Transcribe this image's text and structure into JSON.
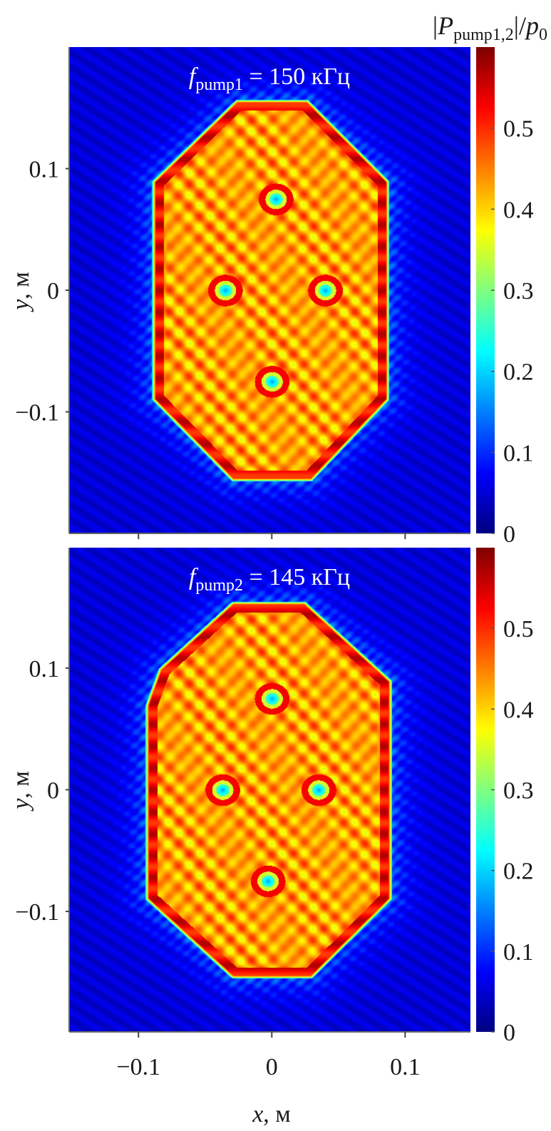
{
  "chart_data": [
    {
      "type": "heatmap",
      "title": {
        "var": "f",
        "sub": "pump1",
        "rest": " = 150 кГц"
      },
      "xlabel": {
        "var": "x",
        "rest": ", м"
      },
      "ylabel": {
        "var": "y",
        "rest": ", м"
      },
      "xlim": [
        -0.152,
        0.149
      ],
      "ylim": [
        -0.2,
        0.2
      ],
      "xticks": [
        -0.1,
        0,
        0.1
      ],
      "yticks": [
        0.1,
        0,
        -0.1
      ],
      "ytick_labels": [
        "0.1",
        "0",
        "−0.1"
      ],
      "show_xtick_labels": false,
      "colorbar": {
        "range": [
          0,
          0.6
        ],
        "ticks": [
          0,
          0.1,
          0.2,
          0.3,
          0.4,
          0.5
        ],
        "tick_labels": [
          "0",
          "0.1",
          "0.2",
          "0.3",
          "0.4",
          "0.5"
        ],
        "colormap": "jet"
      },
      "field": {
        "outside_level": 0.05,
        "inside_level": 0.43,
        "boundary_level": 0.53,
        "boundary_vertices": [
          [
            -0.09,
            0.09
          ],
          [
            -0.027,
            0.157
          ],
          [
            0.027,
            0.157
          ],
          [
            0.088,
            0.09
          ],
          [
            0.088,
            -0.09
          ],
          [
            0.03,
            -0.157
          ],
          [
            -0.03,
            -0.157
          ],
          [
            -0.09,
            -0.09
          ]
        ],
        "holes": [
          [
            0.003,
            0.075
          ],
          [
            -0.035,
            0.0
          ],
          [
            0.04,
            0.0
          ],
          [
            0.0,
            -0.075
          ]
        ]
      }
    },
    {
      "type": "heatmap",
      "title": {
        "var": "f",
        "sub": "pump2",
        "rest": " = 145 кГц"
      },
      "xlabel": {
        "var": "x",
        "rest": ", м"
      },
      "ylabel": {
        "var": "y",
        "rest": ", м"
      },
      "xlim": [
        -0.152,
        0.149
      ],
      "ylim": [
        -0.199,
        0.199
      ],
      "xticks": [
        -0.1,
        0,
        0.1
      ],
      "xtick_labels": [
        "−0.1",
        "0",
        "0.1"
      ],
      "yticks": [
        0.1,
        0,
        -0.1
      ],
      "ytick_labels": [
        "0.1",
        "0",
        "−0.1"
      ],
      "show_xtick_labels": true,
      "colorbar": {
        "range": [
          0,
          0.6
        ],
        "ticks": [
          0,
          0.1,
          0.2,
          0.3,
          0.4,
          0.5
        ],
        "tick_labels": [
          "0",
          "0.1",
          "0.2",
          "0.3",
          "0.4",
          "0.5"
        ],
        "colormap": "jet"
      },
      "field": {
        "outside_level": 0.05,
        "inside_level": 0.43,
        "boundary_level": 0.53,
        "boundary_vertices": [
          [
            -0.095,
            0.07
          ],
          [
            -0.085,
            0.1
          ],
          [
            -0.03,
            0.155
          ],
          [
            0.025,
            0.155
          ],
          [
            0.09,
            0.09
          ],
          [
            0.09,
            -0.09
          ],
          [
            0.03,
            -0.155
          ],
          [
            -0.03,
            -0.155
          ],
          [
            -0.095,
            -0.09
          ]
        ],
        "holes": [
          [
            0.0,
            0.075
          ],
          [
            -0.037,
            0.0
          ],
          [
            0.035,
            0.0
          ],
          [
            -0.003,
            -0.075
          ]
        ]
      }
    }
  ],
  "colorbar_label": {
    "open": "|",
    "var": "P",
    "sub": "pump1,2",
    "mid": "|/",
    "var2": "p",
    "sub2": "0"
  }
}
